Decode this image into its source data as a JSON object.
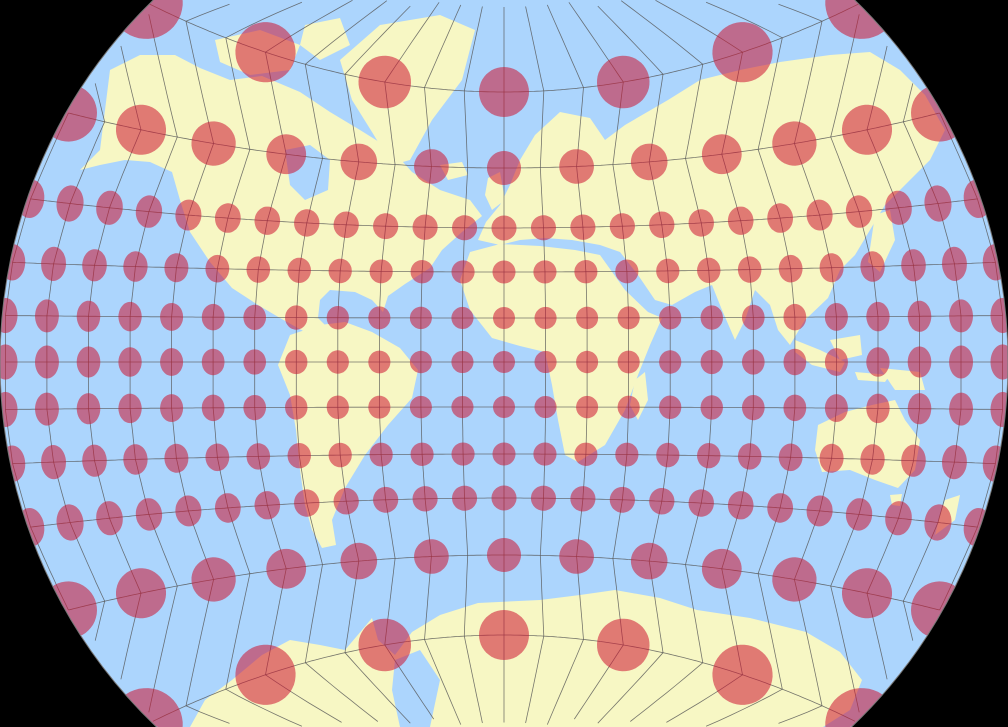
{
  "map": {
    "description_kind": "world map with Tissot indicatrices",
    "colors": {
      "background": "#000000",
      "ocean": "#acd5fd",
      "land": "#f7f7c4",
      "graticule": "#555555",
      "indicatrix": "#cd1432",
      "indicatrix_opacity": 0.55
    },
    "graticule_step_deg": 15,
    "indicatrix_rows": [
      {
        "lat": 75,
        "lon_step": 45
      },
      {
        "lat": 60,
        "lon_step": 30
      },
      {
        "lat": 45,
        "lon_step": 15
      },
      {
        "lat": 30,
        "lon_step": 15
      },
      {
        "lat": 15,
        "lon_step": 15
      },
      {
        "lat": 0,
        "lon_step": 15
      },
      {
        "lat": -15,
        "lon_step": 15
      },
      {
        "lat": -30,
        "lon_step": 15
      },
      {
        "lat": -45,
        "lon_step": 15
      },
      {
        "lat": -60,
        "lon_step": 30
      },
      {
        "lat": -75,
        "lon_step": 45
      }
    ]
  }
}
